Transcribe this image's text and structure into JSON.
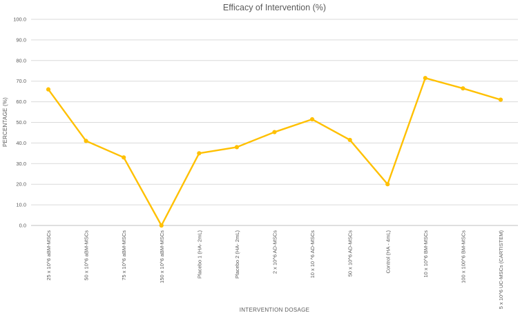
{
  "chart_data": {
    "type": "line",
    "title": "Efficacy of Intervention (%)",
    "xlabel": "INTERVENTION DOSAGE",
    "ylabel": "PERCENTAGE (%)",
    "categories": [
      "25 x 10^6 aBM-MSCs",
      "50 x 10^6 aBM-MSCs",
      "75 x 10^6 aBM-MSCs",
      "150 x 10^6 aBM-MSCs",
      "Placebo 1 (HA- 2mL)",
      "Placebo 2 (HA- 2mL)",
      "2 x 10^6 AD-MSCs",
      "10 x 10 ^6 AD-MSCs",
      "50 x 10^6 AD-MSCs",
      "Control (HA - 4mL)",
      "10 x 10^6 BM-MSCs",
      "100 x 100^6 BM-MSCs",
      "5 x 10^6 UC-MSCs (CARTISTEM)"
    ],
    "series": [
      {
        "name": "Efficacy",
        "values": [
          66,
          41,
          33,
          0,
          35,
          38,
          45.3,
          51.5,
          41.5,
          20,
          71.5,
          66.5,
          61
        ]
      }
    ],
    "ylim": [
      0,
      100
    ],
    "ytick_step": 10,
    "ytick_labels": [
      "100.0",
      "90.0",
      "80.0",
      "70.0",
      "60.0",
      "50.0",
      "40.0",
      "30.0",
      "20.0",
      "10.0",
      "0.0"
    ],
    "grid": true,
    "legend": "none",
    "colors": {
      "line": "#FFC000",
      "marker": "#FFC000",
      "grid": "#D9D9D9",
      "axis": "#BFBFBF",
      "text": "#595959"
    }
  }
}
